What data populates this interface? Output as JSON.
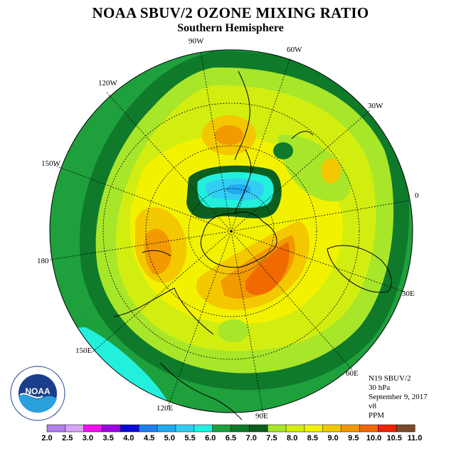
{
  "title": "NOAA SBUV/2 OZONE MIXING RATIO",
  "subtitle": "Southern Hemisphere",
  "info": {
    "satellite": "N19 SBUV/2",
    "level": "30 hPa",
    "date": "September 9, 2017",
    "version": "v8",
    "units": "PPM"
  },
  "logo": {
    "text": "NOAA",
    "ring_text": "NATIONAL OCEANIC AND ATMOSPHERIC ADMINISTRATION · U.S. DEPARTMENT OF COMMERCE",
    "icon": "noaa-logo-icon"
  },
  "longitude_labels": [
    "90W",
    "60W",
    "120W",
    "30W",
    "150W",
    "0",
    "180",
    "30E",
    "150E",
    "60E",
    "120E",
    "90E"
  ],
  "colorbar": {
    "labels": [
      "2.0",
      "2.5",
      "3.0",
      "3.5",
      "4.0",
      "4.5",
      "5.0",
      "5.5",
      "6.0",
      "6.5",
      "7.0",
      "7.5",
      "8.0",
      "8.5",
      "9.0",
      "9.5",
      "10.0",
      "10.5",
      "11.0"
    ],
    "colors": [
      "#b27fef",
      "#d6a5f7",
      "#ee11ee",
      "#9b00e6",
      "#0b0bd8",
      "#1e7fef",
      "#22aaf0",
      "#33ccf5",
      "#22f0dd",
      "#1ea03c",
      "#0e7a2a",
      "#0c5e1f",
      "#a8e62a",
      "#d2ee10",
      "#f2f200",
      "#f4c800",
      "#f29a00",
      "#f06a00",
      "#ee2200",
      "#7a4a2a"
    ]
  }
}
